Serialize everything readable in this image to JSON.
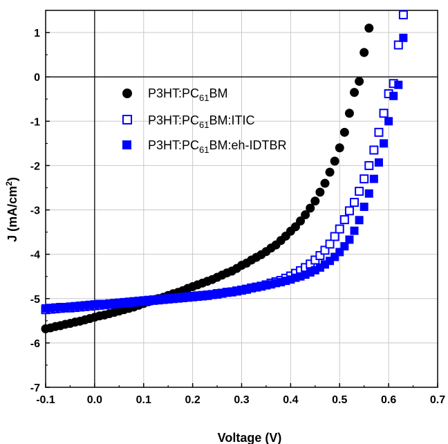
{
  "chart_data": {
    "type": "scatter",
    "title": "",
    "xlabel": "Voltage (V)",
    "ylabel_main": "J (mA/cm",
    "ylabel_sup": "2",
    "ylabel_tail": ")",
    "xlim": [
      -0.1,
      0.7
    ],
    "ylim": [
      -7,
      1.5
    ],
    "x_ticks": [
      -0.1,
      0.0,
      0.1,
      0.2,
      0.3,
      0.4,
      0.5,
      0.6,
      0.7
    ],
    "x_tick_labels": [
      "-0.1",
      "0.0",
      "0.1",
      "0.2",
      "0.3",
      "0.4",
      "0.5",
      "0.6",
      "0.7"
    ],
    "y_ticks": [
      -7,
      -6,
      -5,
      -4,
      -3,
      -2,
      -1,
      0,
      1
    ],
    "y_tick_labels": [
      "-7",
      "-6",
      "-5",
      "-4",
      "-3",
      "-2",
      "-1",
      "0",
      "1"
    ],
    "grid": true,
    "zero_lines": true,
    "legend_position": "top-left",
    "series": [
      {
        "name": "P3HT:PC61BM",
        "legend_parts": [
          "P3HT:PC",
          "61",
          "BM"
        ],
        "marker": "filled-circle",
        "color": "#000000",
        "points": [
          [
            -0.1,
            -5.68
          ],
          [
            -0.09,
            -5.66
          ],
          [
            -0.08,
            -5.63
          ],
          [
            -0.07,
            -5.61
          ],
          [
            -0.06,
            -5.58
          ],
          [
            -0.05,
            -5.56
          ],
          [
            -0.04,
            -5.53
          ],
          [
            -0.03,
            -5.51
          ],
          [
            -0.02,
            -5.48
          ],
          [
            -0.01,
            -5.45
          ],
          [
            0.0,
            -5.42
          ],
          [
            0.01,
            -5.39
          ],
          [
            0.02,
            -5.37
          ],
          [
            0.03,
            -5.34
          ],
          [
            0.04,
            -5.31
          ],
          [
            0.05,
            -5.28
          ],
          [
            0.06,
            -5.25
          ],
          [
            0.07,
            -5.22
          ],
          [
            0.08,
            -5.19
          ],
          [
            0.09,
            -5.15
          ],
          [
            0.1,
            -5.11
          ],
          [
            0.11,
            -5.07
          ],
          [
            0.12,
            -5.03
          ],
          [
            0.13,
            -5.0
          ],
          [
            0.14,
            -4.97
          ],
          [
            0.15,
            -4.93
          ],
          [
            0.16,
            -4.89
          ],
          [
            0.17,
            -4.86
          ],
          [
            0.18,
            -4.82
          ],
          [
            0.19,
            -4.77
          ],
          [
            0.2,
            -4.73
          ],
          [
            0.21,
            -4.69
          ],
          [
            0.22,
            -4.65
          ],
          [
            0.23,
            -4.61
          ],
          [
            0.24,
            -4.57
          ],
          [
            0.25,
            -4.52
          ],
          [
            0.26,
            -4.47
          ],
          [
            0.27,
            -4.42
          ],
          [
            0.28,
            -4.38
          ],
          [
            0.29,
            -4.32
          ],
          [
            0.3,
            -4.25
          ],
          [
            0.31,
            -4.2
          ],
          [
            0.32,
            -4.13
          ],
          [
            0.33,
            -4.07
          ],
          [
            0.34,
            -4.01
          ],
          [
            0.35,
            -3.94
          ],
          [
            0.36,
            -3.86
          ],
          [
            0.37,
            -3.79
          ],
          [
            0.38,
            -3.69
          ],
          [
            0.39,
            -3.59
          ],
          [
            0.4,
            -3.48
          ],
          [
            0.41,
            -3.38
          ],
          [
            0.42,
            -3.25
          ],
          [
            0.43,
            -3.11
          ],
          [
            0.44,
            -2.96
          ],
          [
            0.45,
            -2.8
          ],
          [
            0.46,
            -2.6
          ],
          [
            0.47,
            -2.4
          ],
          [
            0.48,
            -2.15
          ],
          [
            0.49,
            -1.9
          ],
          [
            0.5,
            -1.6
          ],
          [
            0.51,
            -1.25
          ],
          [
            0.52,
            -0.82
          ],
          [
            0.53,
            -0.35
          ],
          [
            0.54,
            -0.1
          ],
          [
            0.55,
            0.55
          ],
          [
            0.56,
            1.1
          ]
        ]
      },
      {
        "name": "P3HT:PC61BM:ITIC",
        "legend_parts": [
          "P3HT:PC",
          "61",
          "BM:ITIC"
        ],
        "marker": "open-square",
        "color": "#0000ff",
        "points": [
          [
            -0.1,
            -5.25
          ],
          [
            -0.09,
            -5.24
          ],
          [
            -0.08,
            -5.23
          ],
          [
            -0.07,
            -5.22
          ],
          [
            -0.06,
            -5.21
          ],
          [
            -0.05,
            -5.21
          ],
          [
            -0.04,
            -5.2
          ],
          [
            -0.03,
            -5.19
          ],
          [
            -0.02,
            -5.18
          ],
          [
            -0.01,
            -5.17
          ],
          [
            0.0,
            -5.16
          ],
          [
            0.01,
            -5.15
          ],
          [
            0.02,
            -5.14
          ],
          [
            0.03,
            -5.13
          ],
          [
            0.04,
            -5.12
          ],
          [
            0.05,
            -5.11
          ],
          [
            0.06,
            -5.1
          ],
          [
            0.07,
            -5.09
          ],
          [
            0.08,
            -5.08
          ],
          [
            0.09,
            -5.07
          ],
          [
            0.1,
            -5.06
          ],
          [
            0.11,
            -5.05
          ],
          [
            0.12,
            -5.04
          ],
          [
            0.13,
            -5.03
          ],
          [
            0.14,
            -5.02
          ],
          [
            0.15,
            -5.01
          ],
          [
            0.16,
            -5.0
          ],
          [
            0.17,
            -4.99
          ],
          [
            0.18,
            -4.98
          ],
          [
            0.19,
            -4.97
          ],
          [
            0.2,
            -4.96
          ],
          [
            0.21,
            -4.95
          ],
          [
            0.22,
            -4.94
          ],
          [
            0.23,
            -4.93
          ],
          [
            0.24,
            -4.91
          ],
          [
            0.25,
            -4.9
          ],
          [
            0.26,
            -4.88
          ],
          [
            0.27,
            -4.86
          ],
          [
            0.28,
            -4.85
          ],
          [
            0.29,
            -4.83
          ],
          [
            0.3,
            -4.81
          ],
          [
            0.31,
            -4.79
          ],
          [
            0.32,
            -4.76
          ],
          [
            0.33,
            -4.74
          ],
          [
            0.34,
            -4.72
          ],
          [
            0.35,
            -4.69
          ],
          [
            0.36,
            -4.65
          ],
          [
            0.37,
            -4.62
          ],
          [
            0.38,
            -4.59
          ],
          [
            0.39,
            -4.54
          ],
          [
            0.4,
            -4.49
          ],
          [
            0.41,
            -4.43
          ],
          [
            0.42,
            -4.37
          ],
          [
            0.43,
            -4.3
          ],
          [
            0.44,
            -4.22
          ],
          [
            0.45,
            -4.13
          ],
          [
            0.46,
            -4.03
          ],
          [
            0.47,
            -3.91
          ],
          [
            0.48,
            -3.77
          ],
          [
            0.49,
            -3.6
          ],
          [
            0.5,
            -3.43
          ],
          [
            0.51,
            -3.22
          ],
          [
            0.52,
            -3.02
          ],
          [
            0.53,
            -2.83
          ],
          [
            0.54,
            -2.58
          ],
          [
            0.55,
            -2.3
          ],
          [
            0.56,
            -2.0
          ],
          [
            0.57,
            -1.65
          ],
          [
            0.58,
            -1.25
          ],
          [
            0.59,
            -0.82
          ],
          [
            0.6,
            -0.38
          ],
          [
            0.61,
            -0.15
          ],
          [
            0.62,
            0.72
          ],
          [
            0.63,
            1.4
          ]
        ]
      },
      {
        "name": "P3HT:PC61BM:eh-IDTBR",
        "legend_parts": [
          "P3HT:PC",
          "61",
          "BM:eh-IDTBR"
        ],
        "marker": "filled-square",
        "color": "#0000ff",
        "points": [
          [
            -0.1,
            -5.22
          ],
          [
            -0.09,
            -5.21
          ],
          [
            -0.08,
            -5.2
          ],
          [
            -0.07,
            -5.19
          ],
          [
            -0.06,
            -5.19
          ],
          [
            -0.05,
            -5.18
          ],
          [
            -0.04,
            -5.17
          ],
          [
            -0.03,
            -5.16
          ],
          [
            -0.02,
            -5.15
          ],
          [
            -0.01,
            -5.14
          ],
          [
            0.0,
            -5.13
          ],
          [
            0.01,
            -5.12
          ],
          [
            0.02,
            -5.12
          ],
          [
            0.03,
            -5.11
          ],
          [
            0.04,
            -5.1
          ],
          [
            0.05,
            -5.09
          ],
          [
            0.06,
            -5.08
          ],
          [
            0.07,
            -5.07
          ],
          [
            0.08,
            -5.06
          ],
          [
            0.09,
            -5.05
          ],
          [
            0.1,
            -5.04
          ],
          [
            0.11,
            -5.03
          ],
          [
            0.12,
            -5.02
          ],
          [
            0.13,
            -5.01
          ],
          [
            0.14,
            -5.0
          ],
          [
            0.15,
            -4.99
          ],
          [
            0.16,
            -4.98
          ],
          [
            0.17,
            -4.97
          ],
          [
            0.18,
            -4.96
          ],
          [
            0.19,
            -4.95
          ],
          [
            0.2,
            -4.94
          ],
          [
            0.21,
            -4.93
          ],
          [
            0.22,
            -4.92
          ],
          [
            0.23,
            -4.91
          ],
          [
            0.24,
            -4.9
          ],
          [
            0.25,
            -4.88
          ],
          [
            0.26,
            -4.87
          ],
          [
            0.27,
            -4.85
          ],
          [
            0.28,
            -4.84
          ],
          [
            0.29,
            -4.82
          ],
          [
            0.3,
            -4.8
          ],
          [
            0.31,
            -4.78
          ],
          [
            0.32,
            -4.76
          ],
          [
            0.33,
            -4.74
          ],
          [
            0.34,
            -4.72
          ],
          [
            0.35,
            -4.7
          ],
          [
            0.36,
            -4.68
          ],
          [
            0.37,
            -4.65
          ],
          [
            0.38,
            -4.63
          ],
          [
            0.39,
            -4.6
          ],
          [
            0.4,
            -4.57
          ],
          [
            0.41,
            -4.53
          ],
          [
            0.42,
            -4.5
          ],
          [
            0.43,
            -4.46
          ],
          [
            0.44,
            -4.41
          ],
          [
            0.45,
            -4.36
          ],
          [
            0.46,
            -4.3
          ],
          [
            0.47,
            -4.23
          ],
          [
            0.48,
            -4.15
          ],
          [
            0.49,
            -4.06
          ],
          [
            0.5,
            -3.95
          ],
          [
            0.51,
            -3.82
          ],
          [
            0.52,
            -3.67
          ],
          [
            0.53,
            -3.47
          ],
          [
            0.54,
            -3.23
          ],
          [
            0.55,
            -2.93
          ],
          [
            0.56,
            -2.63
          ],
          [
            0.57,
            -2.3
          ],
          [
            0.58,
            -1.93
          ],
          [
            0.59,
            -1.5
          ],
          [
            0.6,
            -1.0
          ],
          [
            0.61,
            -0.43
          ],
          [
            0.62,
            -0.18
          ],
          [
            0.63,
            0.88
          ]
        ]
      }
    ]
  }
}
